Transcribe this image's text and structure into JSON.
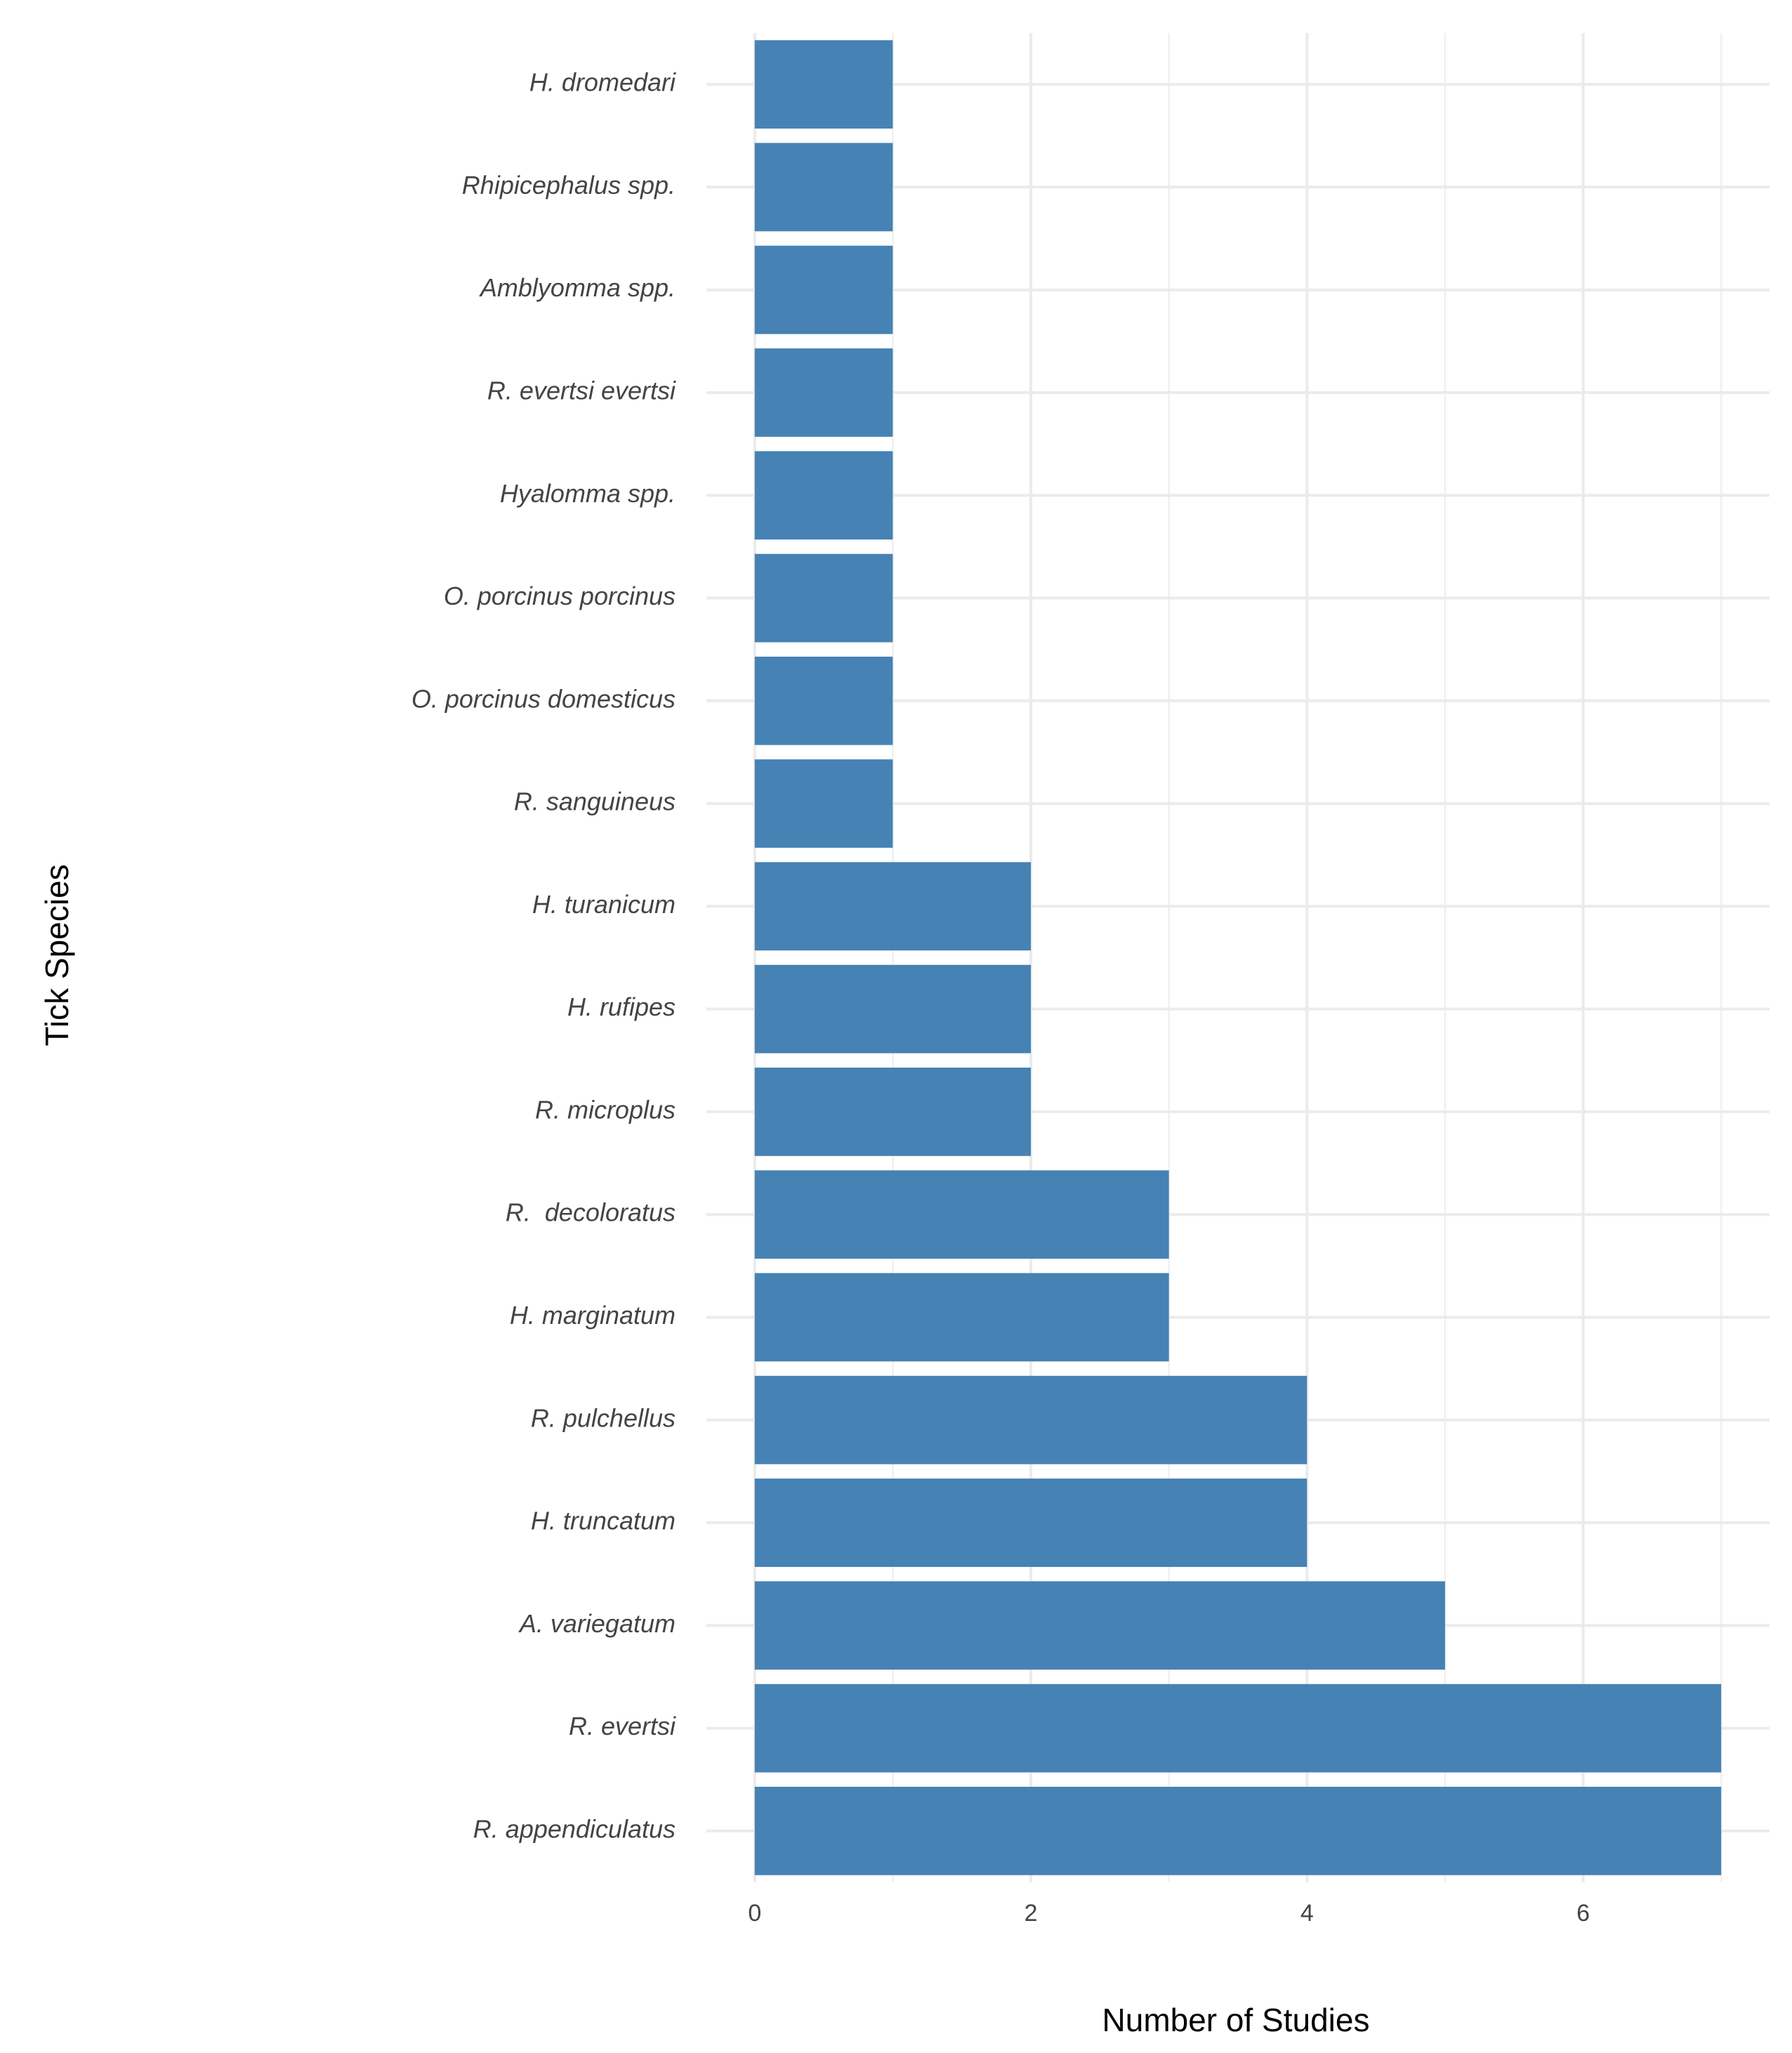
{
  "chart_data": {
    "type": "barh",
    "x_label": "Number of Studies",
    "y_label": "Tick Species",
    "categories": [
      "H. dromedari",
      "Rhipicephalus spp.",
      "Amblyomma spp.",
      "R. evertsi evertsi",
      "Hyalomma spp.",
      "O. porcinus porcinus",
      "O. porcinus domesticus",
      "R. sanguineus",
      "H. turanicum",
      "H. rufipes",
      "R. microplus",
      "R.  decoloratus",
      "H. marginatum",
      "R. pulchellus",
      "H. truncatum",
      "A. variegatum",
      "R. evertsi",
      "R. appendiculatus"
    ],
    "values": [
      1,
      1,
      1,
      1,
      1,
      1,
      1,
      1,
      2,
      2,
      2,
      3,
      3,
      4,
      4,
      5,
      7,
      7
    ],
    "color": "#4682b4",
    "xlim": [
      -0.35,
      7.35
    ],
    "xticks": [
      0,
      2,
      4,
      6
    ],
    "xminorticks": [
      1,
      3,
      5,
      7
    ],
    "grid": true
  }
}
